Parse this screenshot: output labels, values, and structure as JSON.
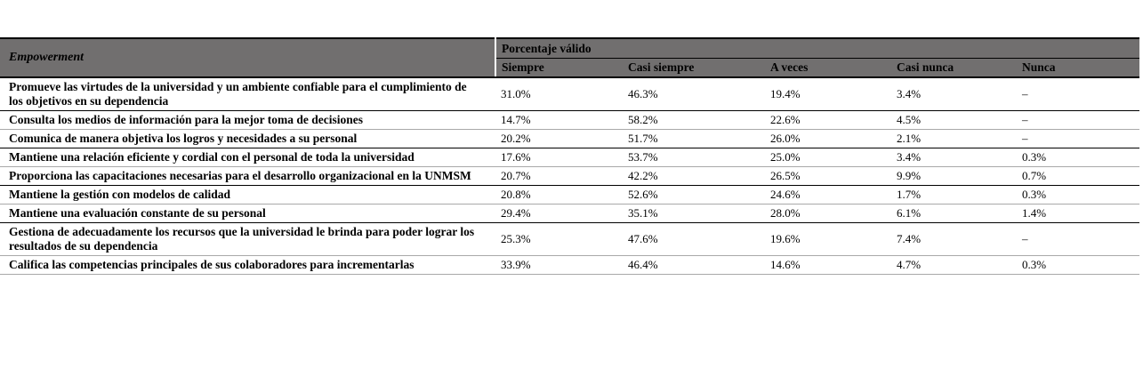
{
  "table": {
    "title_cell": "Empowerment",
    "group_header": "Porcentaje válido",
    "columns": [
      "Siempre",
      "Casi siempre",
      "A veces",
      "Casi nunca",
      "Nunca"
    ],
    "rows": [
      {
        "label": "Promueve las virtudes de la universidad y un ambiente confiable para el cumplimiento de los objetivos en su dependencia",
        "values": [
          "31.0%",
          "46.3%",
          "19.4%",
          "3.4%",
          "–"
        ]
      },
      {
        "label": "Consulta los medios de información para la mejor toma de decisiones",
        "values": [
          "14.7%",
          "58.2%",
          "22.6%",
          "4.5%",
          "–"
        ]
      },
      {
        "label": "Comunica de manera objetiva los logros y necesidades a su personal",
        "values": [
          "20.2%",
          "51.7%",
          "26.0%",
          "2.1%",
          "–"
        ]
      },
      {
        "label": "Mantiene una relación eficiente y cordial con el personal de toda la universidad",
        "values": [
          "17.6%",
          "53.7%",
          "25.0%",
          "3.4%",
          "0.3%"
        ]
      },
      {
        "label": "Proporciona las capacitaciones necesarias para el desarrollo organizacional en la UNMSM",
        "values": [
          "20.7%",
          "42.2%",
          "26.5%",
          "9.9%",
          "0.7%"
        ]
      },
      {
        "label": "Mantiene la gestión con modelos de calidad",
        "values": [
          "20.8%",
          "52.6%",
          "24.6%",
          "1.7%",
          "0.3%"
        ]
      },
      {
        "label": "Mantiene una evaluación constante de su personal",
        "values": [
          "29.4%",
          "35.1%",
          "28.0%",
          "6.1%",
          "1.4%"
        ]
      },
      {
        "label": "Gestiona de adecuadamente los recursos que la universidad le brinda para poder lograr los resultados de su dependencia",
        "values": [
          "25.3%",
          "47.6%",
          "19.6%",
          "7.4%",
          "–"
        ]
      },
      {
        "label": "Califica las competencias principales de sus colaboradores para incrementarlas",
        "values": [
          "33.9%",
          "46.4%",
          "14.6%",
          "4.7%",
          "0.3%"
        ]
      }
    ]
  },
  "colors": {
    "header_bg": "#716F6F",
    "border_dark": "#000000",
    "border_light": "#a9a9a9",
    "text": "#000000"
  }
}
